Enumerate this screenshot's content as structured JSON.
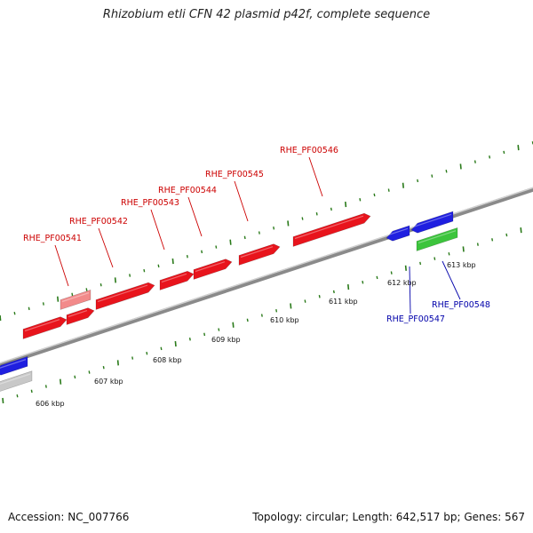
{
  "title": "Rhizobium etli CFN 42 plasmid p42f, complete sequence",
  "footer": {
    "accession": "Accession: NC_007766",
    "summary": "Topology: circular; Length: 642,517 bp; Genes: 567"
  },
  "colors": {
    "forward_gene": "#e8141c",
    "reverse_gene": "#1f1fe0",
    "rna_gene": "#3cc43c",
    "pseudo_gene": "#f28a8a",
    "other_gene": "#c8c8c8",
    "ticks": "#2a7a1a",
    "forward_label": "#cc0000",
    "reverse_label": "#0000aa"
  },
  "gene_labels": [
    {
      "id": "RHE_PF00541",
      "strand": "forward"
    },
    {
      "id": "RHE_PF00542",
      "strand": "forward"
    },
    {
      "id": "RHE_PF00543",
      "strand": "forward"
    },
    {
      "id": "RHE_PF00544",
      "strand": "forward"
    },
    {
      "id": "RHE_PF00545",
      "strand": "forward"
    },
    {
      "id": "RHE_PF00546",
      "strand": "forward"
    },
    {
      "id": "RHE_PF00547",
      "strand": "reverse"
    },
    {
      "id": "RHE_PF00548",
      "strand": "reverse"
    }
  ],
  "scale_labels": [
    "606 kbp",
    "607 kbp",
    "608 kbp",
    "609 kbp",
    "610 kbp",
    "611 kbp",
    "612 kbp",
    "613 kbp"
  ]
}
